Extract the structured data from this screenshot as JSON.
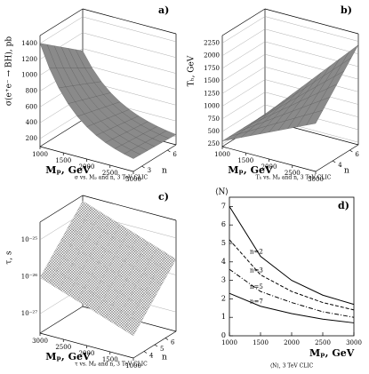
{
  "chart_data": [
    {
      "type": "surface3d",
      "title": "a)",
      "caption": "σ vs. Mₚ and n, 3 TeV CLIC",
      "zlabel": "σ(e⁺e⁻ → BH), pb",
      "xlabel": "Mₚ, GeV",
      "nlabel": "n",
      "xlim": [
        1000,
        3000
      ],
      "xticks": [
        1000,
        1500,
        2000,
        2500,
        3000
      ],
      "zlim": [
        100,
        1500
      ],
      "zticks": [
        200,
        400,
        600,
        800,
        1000,
        1200,
        1400
      ],
      "nlim": [
        2,
        7
      ],
      "nticks": [
        3,
        6
      ],
      "log_z": false
    },
    {
      "type": "surface3d",
      "title": "b)",
      "caption": "Tₕ vs. Mₚ and n, 3 TeV CLIC",
      "zlabel": "Tₕ, GeV",
      "xlabel": "Mₚ, GeV",
      "nlabel": "n",
      "xlim": [
        1000,
        3000
      ],
      "xticks": [
        1000,
        1500,
        2000,
        2500,
        3000
      ],
      "zlim": [
        200,
        2400
      ],
      "zticks": [
        250,
        500,
        750,
        1000,
        1250,
        1500,
        1750,
        2000,
        2250
      ],
      "nlim": [
        2,
        7
      ],
      "nticks": [
        4,
        6
      ],
      "log_z": false
    },
    {
      "type": "surface3d",
      "title": "c)",
      "caption": "τ vs. Mₚ and n, 3 TeV CLIC",
      "zlabel": "τ, s",
      "xlabel": "Mₚ, GeV",
      "nlabel": "n",
      "xlim": [
        3000,
        1000
      ],
      "xticks": [
        3000,
        2500,
        2000,
        1500,
        1000
      ],
      "zlim": [
        3e-28,
        3e-25
      ],
      "zticks": [
        {
          "value": 1e-27,
          "label": "10⁻²⁷"
        },
        {
          "value": 1e-26,
          "label": "10⁻²⁶"
        },
        {
          "value": 1e-25,
          "label": "10⁻²⁵"
        }
      ],
      "nlim": [
        3,
        7
      ],
      "nticks": [
        4,
        5,
        6
      ],
      "log_z": true
    },
    {
      "type": "line",
      "title": "d)",
      "caption": "⟨N⟩, 3 TeV CLIC",
      "xlabel": "Mₚ, GeV",
      "ylabel": "⟨N⟩",
      "x": [
        1000,
        1500,
        2000,
        2500,
        3000
      ],
      "xlim": [
        1000,
        3000
      ],
      "xticks": [
        1000,
        1500,
        2000,
        2500,
        3000
      ],
      "ylim": [
        0,
        7.5
      ],
      "yticks": [
        0,
        1,
        2,
        3,
        4,
        5,
        6,
        7
      ],
      "series": [
        {
          "name": "n=2",
          "color": "#000000",
          "linestyle": "solid",
          "values": [
            7.0,
            4.3,
            3.0,
            2.2,
            1.7
          ]
        },
        {
          "name": "n=3",
          "color": "#000000",
          "linestyle": "dashed",
          "values": [
            5.2,
            3.3,
            2.4,
            1.8,
            1.4
          ]
        },
        {
          "name": "n=5",
          "color": "#000000",
          "linestyle": "dashdot",
          "values": [
            3.6,
            2.4,
            1.8,
            1.3,
            1.0
          ]
        },
        {
          "name": "n=7",
          "color": "#000000",
          "linestyle": "solid",
          "values": [
            2.3,
            1.6,
            1.2,
            0.9,
            0.7
          ]
        }
      ]
    }
  ]
}
